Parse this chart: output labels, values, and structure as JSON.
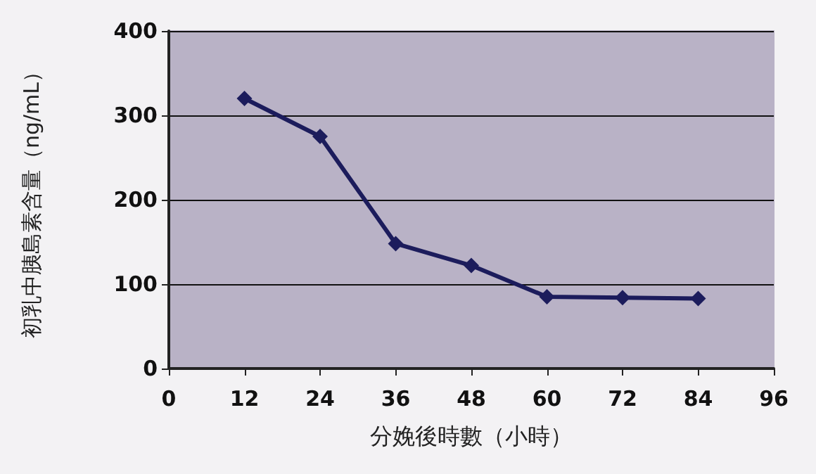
{
  "chart_data": {
    "type": "line",
    "xlabel": "分娩後時數（小時）",
    "ylabel": "初乳中胰島素含量（ng/mL）",
    "x": [
      12,
      24,
      36,
      48,
      60,
      72,
      84
    ],
    "series": [
      {
        "color": "#1c1c5c",
        "values": [
          320,
          275,
          148,
          122,
          85,
          84,
          83
        ]
      }
    ],
    "xlim": [
      0,
      96
    ],
    "xticks": [
      0,
      12,
      24,
      36,
      48,
      60,
      72,
      84,
      96
    ],
    "ylim": [
      0,
      400
    ],
    "yticks": [
      0,
      100,
      200,
      300,
      400
    ],
    "grid": "y",
    "marker": "diamond",
    "line_style": "solid"
  }
}
